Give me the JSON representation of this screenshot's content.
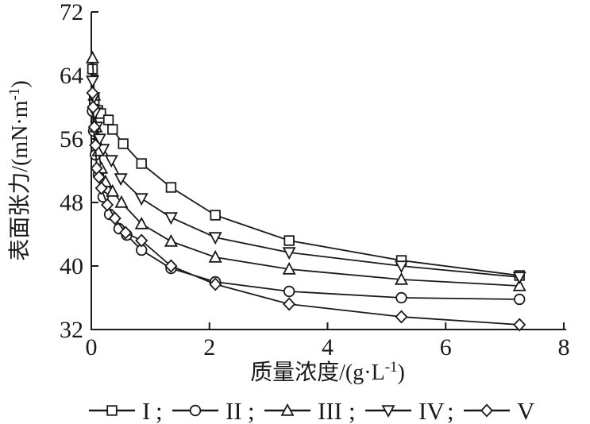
{
  "chart_data": {
    "type": "line",
    "title": "",
    "xlabel": {
      "base": "质量浓度/(g·L",
      "sup": "-1",
      "close": ")"
    },
    "ylabel": {
      "base": "表面张力/(mN·m",
      "sup": "-1",
      "close": ")"
    },
    "xlim": [
      0,
      8
    ],
    "ylim": [
      32,
      72
    ],
    "xticks": [
      "0",
      "2",
      "4",
      "6",
      "8"
    ],
    "yticks": [
      "32",
      "40",
      "48",
      "56",
      "64",
      "72"
    ],
    "grid": false,
    "legend_position": "bottom",
    "legend_separator": ";",
    "line_color": "#1a1a1a",
    "background": "#ffffff",
    "series": [
      {
        "name": "I",
        "marker": "square",
        "x": [
          0.02,
          0.05,
          0.11,
          0.16,
          0.29,
          0.36,
          0.54,
          0.85,
          1.35,
          2.1,
          3.35,
          5.25,
          7.25
        ],
        "y": [
          64.8,
          60.9,
          59.6,
          59.2,
          58.4,
          57.2,
          55.4,
          52.9,
          49.9,
          46.4,
          43.2,
          40.7,
          38.8
        ]
      },
      {
        "name": "II",
        "marker": "circle",
        "x": [
          0.02,
          0.04,
          0.07,
          0.12,
          0.2,
          0.31,
          0.47,
          0.6,
          0.85,
          1.35,
          2.1,
          3.35,
          5.25,
          7.25
        ],
        "y": [
          59.5,
          57.0,
          54.0,
          51.5,
          48.7,
          46.5,
          44.7,
          43.9,
          42.0,
          39.7,
          38.0,
          36.8,
          36.0,
          35.8
        ]
      },
      {
        "name": "III",
        "marker": "triangle-up",
        "x": [
          0.02,
          0.05,
          0.08,
          0.12,
          0.17,
          0.24,
          0.36,
          0.51,
          0.85,
          1.35,
          2.1,
          3.35,
          5.25,
          7.25
        ],
        "y": [
          66.2,
          61.5,
          57.5,
          54.5,
          52.3,
          50.6,
          49.4,
          48.0,
          45.3,
          43.1,
          41.1,
          39.6,
          38.3,
          37.5
        ]
      },
      {
        "name": "IV",
        "marker": "triangle-down",
        "x": [
          0.02,
          0.04,
          0.06,
          0.09,
          0.14,
          0.2,
          0.34,
          0.5,
          0.85,
          1.35,
          2.1,
          3.35,
          5.25,
          7.25
        ],
        "y": [
          63.3,
          61.2,
          59.3,
          57.5,
          56.0,
          54.7,
          53.3,
          51.0,
          48.5,
          46.1,
          43.6,
          41.7,
          40.0,
          38.6
        ]
      },
      {
        "name": "V",
        "marker": "diamond",
        "x": [
          0.02,
          0.03,
          0.05,
          0.07,
          0.09,
          0.13,
          0.17,
          0.27,
          0.4,
          0.58,
          0.85,
          1.35,
          2.1,
          3.35,
          5.25,
          7.25
        ],
        "y": [
          61.8,
          60.0,
          57.5,
          55.2,
          52.3,
          51.2,
          49.8,
          47.7,
          46.0,
          44.2,
          43.2,
          40.0,
          37.7,
          35.2,
          33.6,
          32.6
        ]
      }
    ]
  }
}
